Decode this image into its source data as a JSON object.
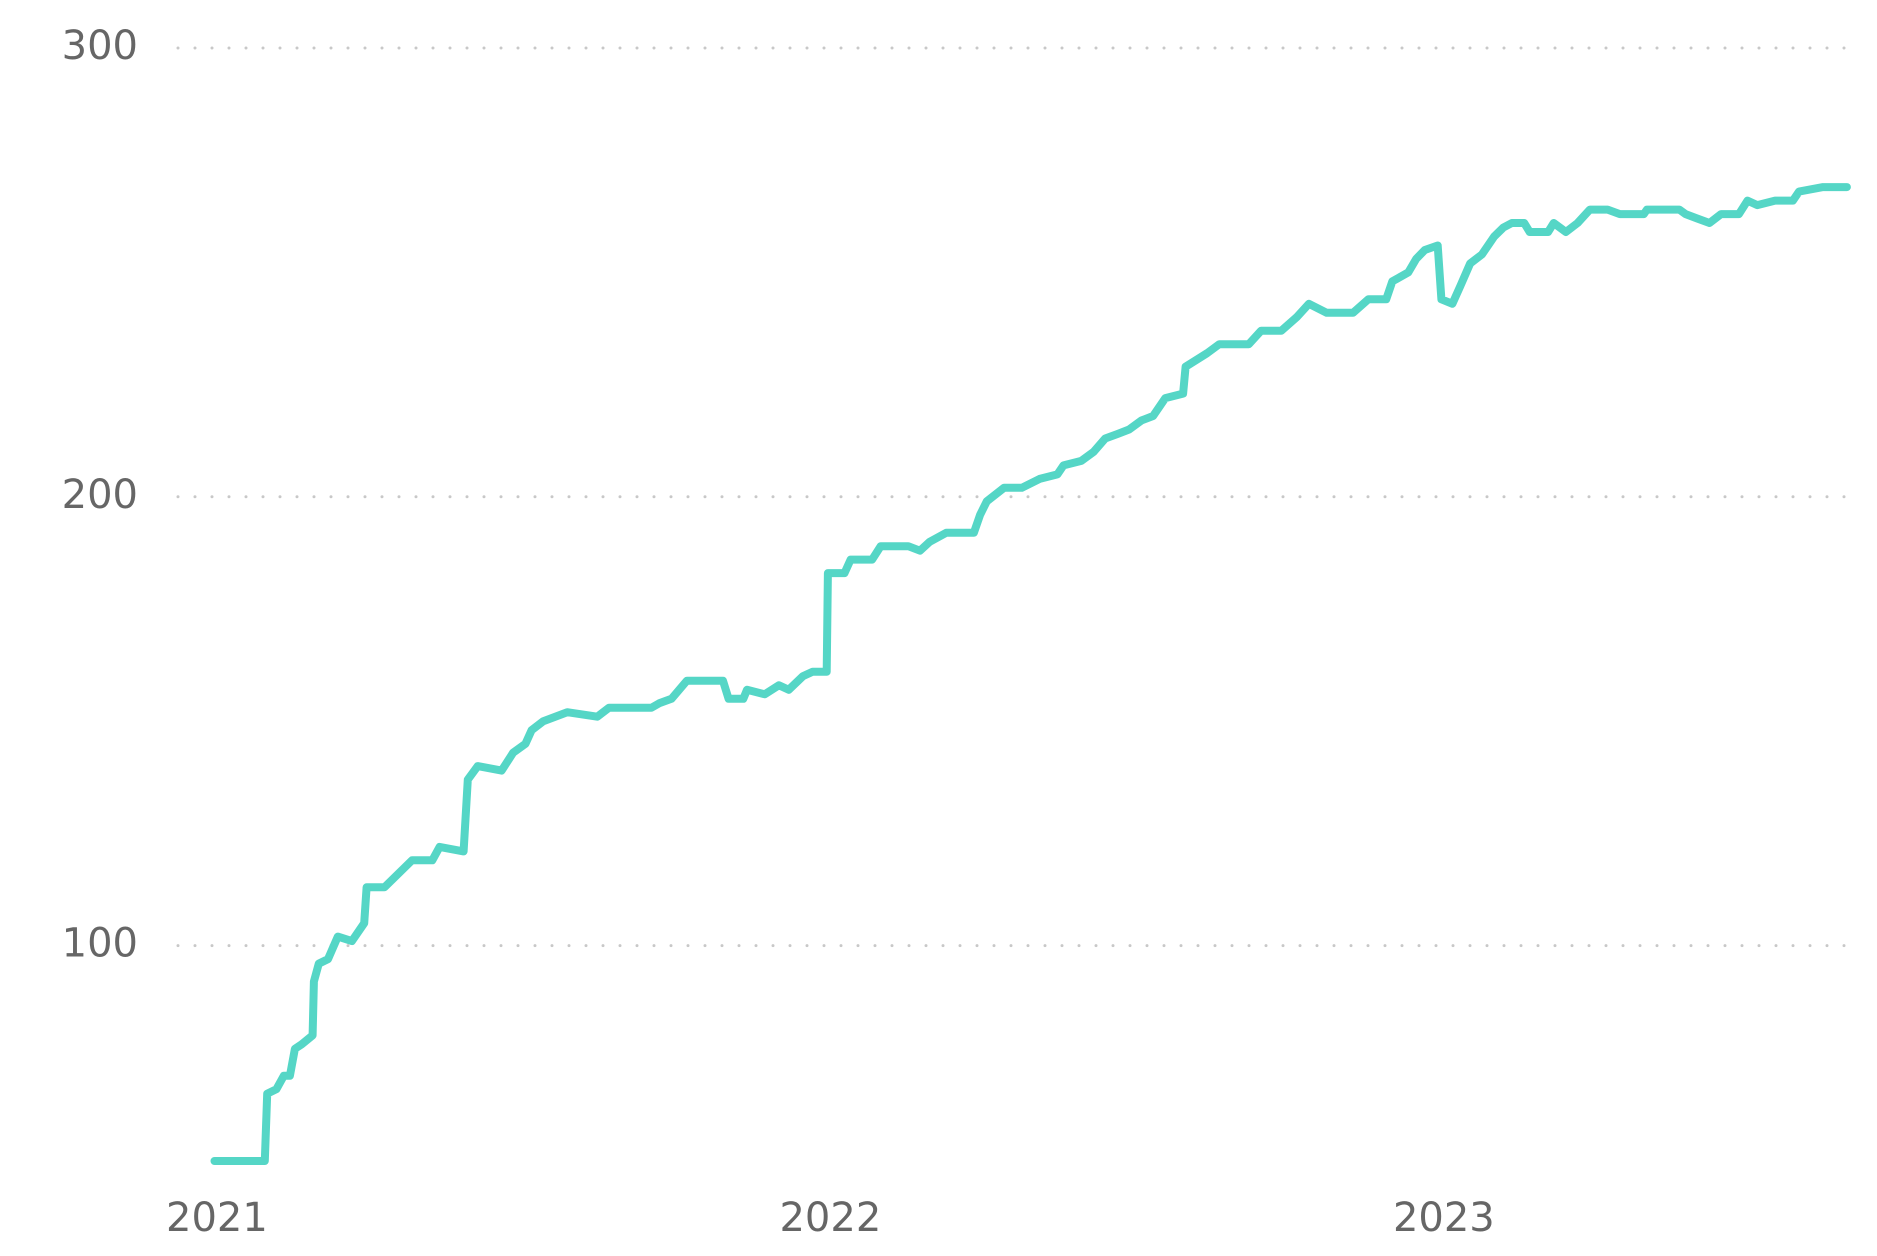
{
  "chart_data": {
    "type": "line",
    "x": [
      2020.996,
      2021.078,
      2021.082,
      2021.097,
      2021.109,
      2021.119,
      2021.127,
      2021.138,
      2021.156,
      2021.158,
      2021.166,
      2021.181,
      2021.197,
      2021.22,
      2021.24,
      2021.244,
      2021.273,
      2021.318,
      2021.351,
      2021.363,
      2021.402,
      2021.409,
      2021.425,
      2021.464,
      2021.483,
      2021.503,
      2021.513,
      2021.532,
      2021.571,
      2021.62,
      2021.639,
      2021.708,
      2021.721,
      2021.741,
      2021.766,
      2021.825,
      2021.834,
      2021.858,
      2021.864,
      2021.893,
      2021.916,
      2021.932,
      2021.955,
      2021.971,
      2021.994,
      2021.996,
      2022.023,
      2022.033,
      2022.068,
      2022.082,
      2022.127,
      2022.146,
      2022.162,
      2022.189,
      2022.234,
      2022.244,
      2022.255,
      2022.283,
      2022.312,
      2022.341,
      2022.37,
      2022.38,
      2022.409,
      2022.429,
      2022.448,
      2022.468,
      2022.487,
      2022.507,
      2022.526,
      2022.546,
      2022.575,
      2022.579,
      2022.614,
      2022.634,
      2022.682,
      2022.702,
      2022.735,
      2022.76,
      2022.78,
      2022.809,
      2022.852,
      2022.877,
      2022.906,
      2022.916,
      2022.942,
      2022.955,
      2022.969,
      2022.99,
      2022.996,
      2023.014,
      2023.027,
      2023.043,
      2023.062,
      2023.082,
      2023.097,
      2023.111,
      2023.131,
      2023.14,
      2023.17,
      2023.179,
      2023.199,
      2023.218,
      2023.238,
      2023.267,
      2023.287,
      2023.326,
      2023.331,
      2023.345,
      2023.384,
      2023.394,
      2023.413,
      2023.433,
      2023.452,
      2023.481,
      2023.495,
      2023.511,
      2023.54,
      2023.569,
      2023.579,
      2023.618,
      2023.637,
      2023.657
    ],
    "values": [
      52,
      52,
      67,
      68,
      71,
      71,
      77,
      78,
      80,
      92,
      96,
      97,
      102,
      101,
      105,
      113,
      113,
      119,
      119,
      122,
      121,
      137,
      140,
      139,
      143,
      145,
      148,
      150,
      152,
      151,
      153,
      153,
      154,
      155,
      159,
      159,
      155,
      155,
      157,
      156,
      158,
      157,
      160,
      161,
      161,
      183,
      183,
      186,
      186,
      189,
      189,
      188,
      190,
      192,
      192,
      196,
      199,
      202,
      202,
      204,
      205,
      207,
      208,
      210,
      213,
      214,
      215,
      217,
      218,
      222,
      223,
      229,
      232,
      234,
      234,
      237,
      237,
      240,
      243,
      241,
      241,
      244,
      244,
      248,
      250,
      253,
      255,
      256,
      244,
      243,
      247,
      252,
      254,
      258,
      260,
      261,
      261,
      259,
      259,
      261,
      259,
      261,
      264,
      264,
      263,
      263,
      264,
      264,
      264,
      263,
      262,
      261,
      263,
      263,
      266,
      265,
      266,
      266,
      268,
      269,
      269,
      269
    ],
    "color": "#55d6c6",
    "xlim": [
      2020.93,
      2023.68
    ],
    "xticks": [
      2021,
      2022,
      2023
    ],
    "ylim": [
      48,
      300
    ],
    "yticks": [
      100,
      200,
      300
    ],
    "grid": true
  }
}
